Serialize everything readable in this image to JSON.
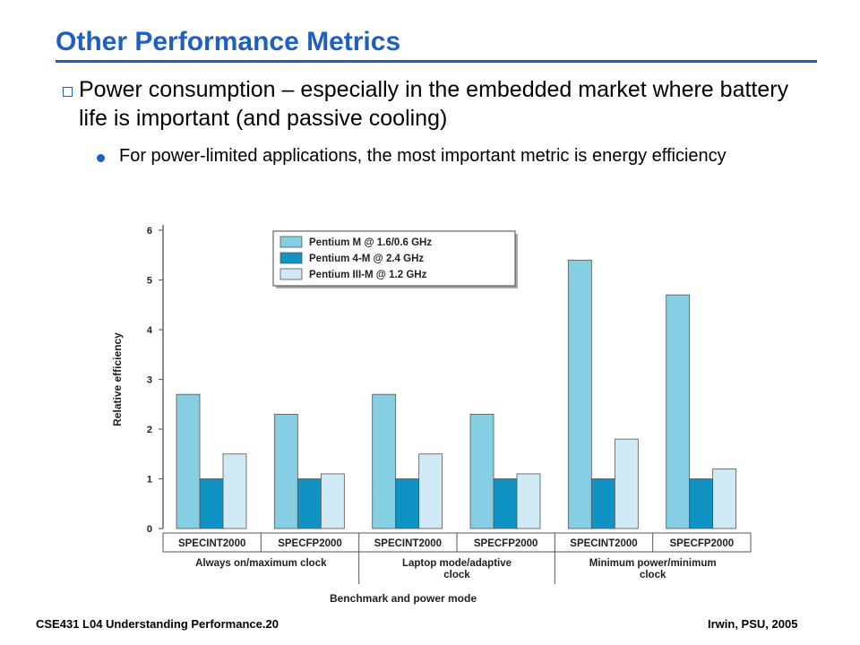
{
  "slide": {
    "title": "Other Performance Metrics",
    "bullet": "Power consumption – especially in the embedded market where battery life is important (and passive cooling)",
    "sub_bullet": "For power-limited applications, the most important metric is energy efficiency",
    "footer_left": "CSE431  L04 Understanding Performance.20",
    "footer_right": "Irwin, PSU, 2005"
  },
  "colors": {
    "title": "#1f5fbf",
    "series": [
      "#86cee4",
      "#0e93c4",
      "#cfeaf5"
    ]
  },
  "chart_data": {
    "type": "bar",
    "title": "",
    "xlabel": "Benchmark and power mode",
    "ylabel": "Relative efficiency",
    "ylim": [
      0,
      6
    ],
    "yticks": [
      "0",
      "1",
      "2",
      "3",
      "4",
      "5",
      "6"
    ],
    "categories": [
      "SPECINT2000",
      "SPECFP2000",
      "SPECINT2000",
      "SPECFP2000",
      "SPECINT2000",
      "SPECFP2000"
    ],
    "groups": [
      {
        "label": "Always on/maximum clock",
        "span": [
          0,
          1
        ]
      },
      {
        "label": "Laptop mode/adaptive clock",
        "span": [
          2,
          3
        ]
      },
      {
        "label": "Minimum power/minimum clock",
        "span": [
          4,
          5
        ]
      }
    ],
    "series": [
      {
        "name": "Pentium M @ 1.6/0.6 GHz",
        "values": [
          2.7,
          2.3,
          2.7,
          2.3,
          5.4,
          4.7
        ]
      },
      {
        "name": "Pentium 4-M @ 2.4 GHz",
        "values": [
          1.0,
          1.0,
          1.0,
          1.0,
          1.0,
          1.0
        ]
      },
      {
        "name": "Pentium III-M @ 1.2 GHz",
        "values": [
          1.5,
          1.1,
          1.5,
          1.1,
          1.8,
          1.2
        ]
      }
    ],
    "legend_position": "top-center",
    "grid": false
  }
}
